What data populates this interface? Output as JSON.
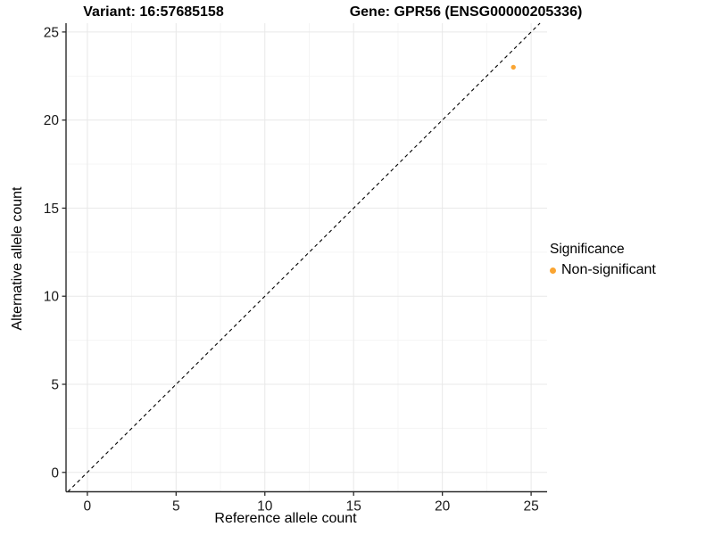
{
  "chart_data": {
    "type": "scatter",
    "title_left": "Variant: 16:57685158",
    "title_right": "Gene: GPR56 (ENSG00000205336)",
    "xlabel": "Reference allele count",
    "ylabel": "Alternative allele count",
    "xlim": [
      -1.2,
      25.9
    ],
    "ylim": [
      -1.1,
      25.5
    ],
    "x_ticks": [
      0,
      5,
      10,
      15,
      20,
      25
    ],
    "y_ticks": [
      0,
      5,
      10,
      15,
      20,
      25
    ],
    "x_minor_ticks": [
      2.5,
      7.5,
      12.5,
      17.5,
      22.5
    ],
    "y_minor_ticks": [
      2.5,
      7.5,
      12.5,
      17.5,
      22.5
    ],
    "grid": true,
    "series": [
      {
        "name": "Non-significant",
        "color": "#FAA532",
        "points": [
          {
            "x": 24,
            "y": 23
          }
        ]
      }
    ],
    "reference_line": {
      "type": "identity",
      "style": "dashed",
      "color": "#000000"
    },
    "legend": {
      "title": "Significance",
      "position": "right",
      "items": [
        {
          "label": "Non-significant",
          "color": "#FAA532"
        }
      ]
    }
  },
  "colors": {
    "background": "#ffffff",
    "axis_line": "#2b2b2b",
    "tick_mark": "#2b2b2b",
    "tick_text": "#1a1a1a",
    "grid_major": "#e8e8e8",
    "grid_minor": "#f4f4f4",
    "point": "#FAA532"
  }
}
